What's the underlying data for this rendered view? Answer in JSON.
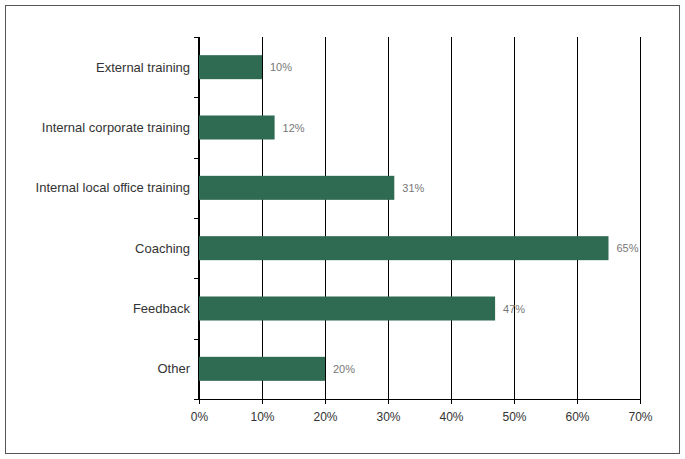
{
  "chart_data": {
    "type": "bar",
    "orientation": "horizontal",
    "categories": [
      "External training",
      "Internal corporate training",
      "Internal local office training",
      "Coaching",
      "Feedback",
      "Other"
    ],
    "values": [
      10,
      12,
      31,
      65,
      47,
      20
    ],
    "value_labels": [
      "10%",
      "12%",
      "31%",
      "65%",
      "47%",
      "20%"
    ],
    "color": "#2e6b52",
    "xlim": [
      0,
      70
    ],
    "xticks": [
      {
        "value": 0,
        "label": "0%"
      },
      {
        "value": 10,
        "label": "10%"
      },
      {
        "value": 20,
        "label": "20%"
      },
      {
        "value": 30,
        "label": "30%"
      },
      {
        "value": 40,
        "label": "40%"
      },
      {
        "value": 50,
        "label": "50%"
      },
      {
        "value": 60,
        "label": "60%"
      },
      {
        "value": 70,
        "label": "70%"
      }
    ],
    "grid": true,
    "data_labels": true
  }
}
